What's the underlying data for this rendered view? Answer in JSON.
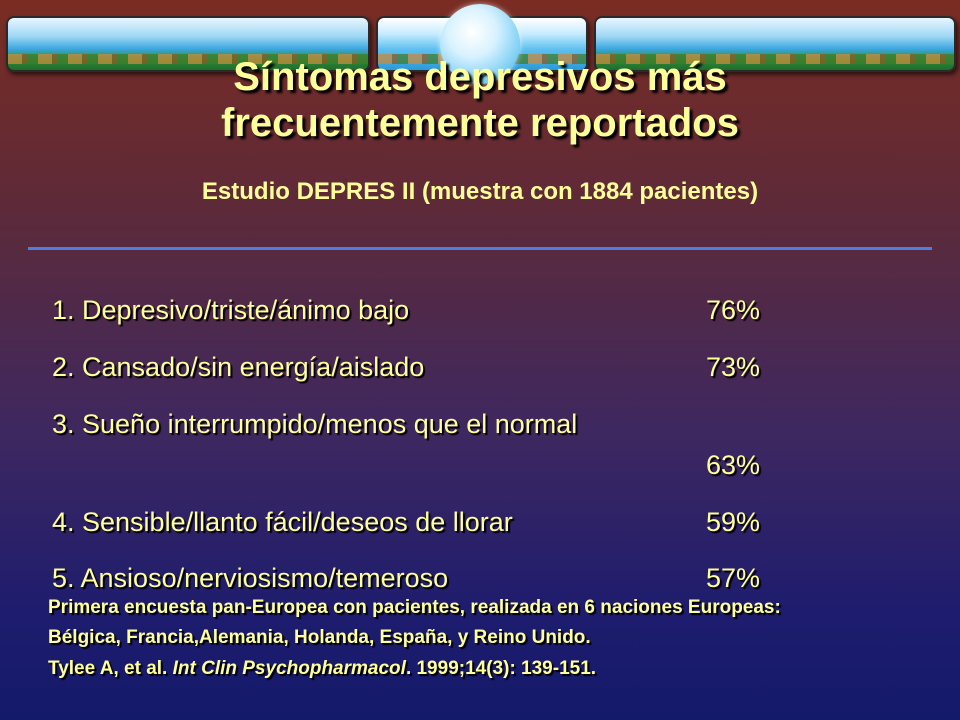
{
  "slide": {
    "title_line1": "Síntomas depresivos más",
    "title_line2": "frecuentemente reportados",
    "subtitle": "Estudio DEPRES II (muestra con 1884 pacientes)"
  },
  "symptoms": [
    {
      "label": "1. Depresivo/triste/ánimo bajo",
      "percent": "76%"
    },
    {
      "label": "2. Cansado/sin energía/aislado",
      "percent": "73%"
    },
    {
      "label": "3. Sueño interrumpido/menos que el normal",
      "percent": "63%"
    },
    {
      "label": "4. Sensible/llanto fácil/deseos de llorar",
      "percent": "59%"
    },
    {
      "label": "5. Ansioso/nerviosismo/temeroso",
      "percent": "57%"
    }
  ],
  "footer": {
    "line1": "Primera encuesta  pan-Europea con pacientes, realizada  en 6  naciones Europeas:",
    "line2": "Bélgica, Francia,Alemania, Holanda, España, y  Reino Unido.",
    "citation_prefix": "Tylee A, et al. ",
    "citation_journal": "Int Clin Psychopharmacol",
    "citation_suffix": ". 1999;14(3): 139-151."
  },
  "colors": {
    "text": "#ffff99",
    "divider": "#4a7fe0"
  }
}
